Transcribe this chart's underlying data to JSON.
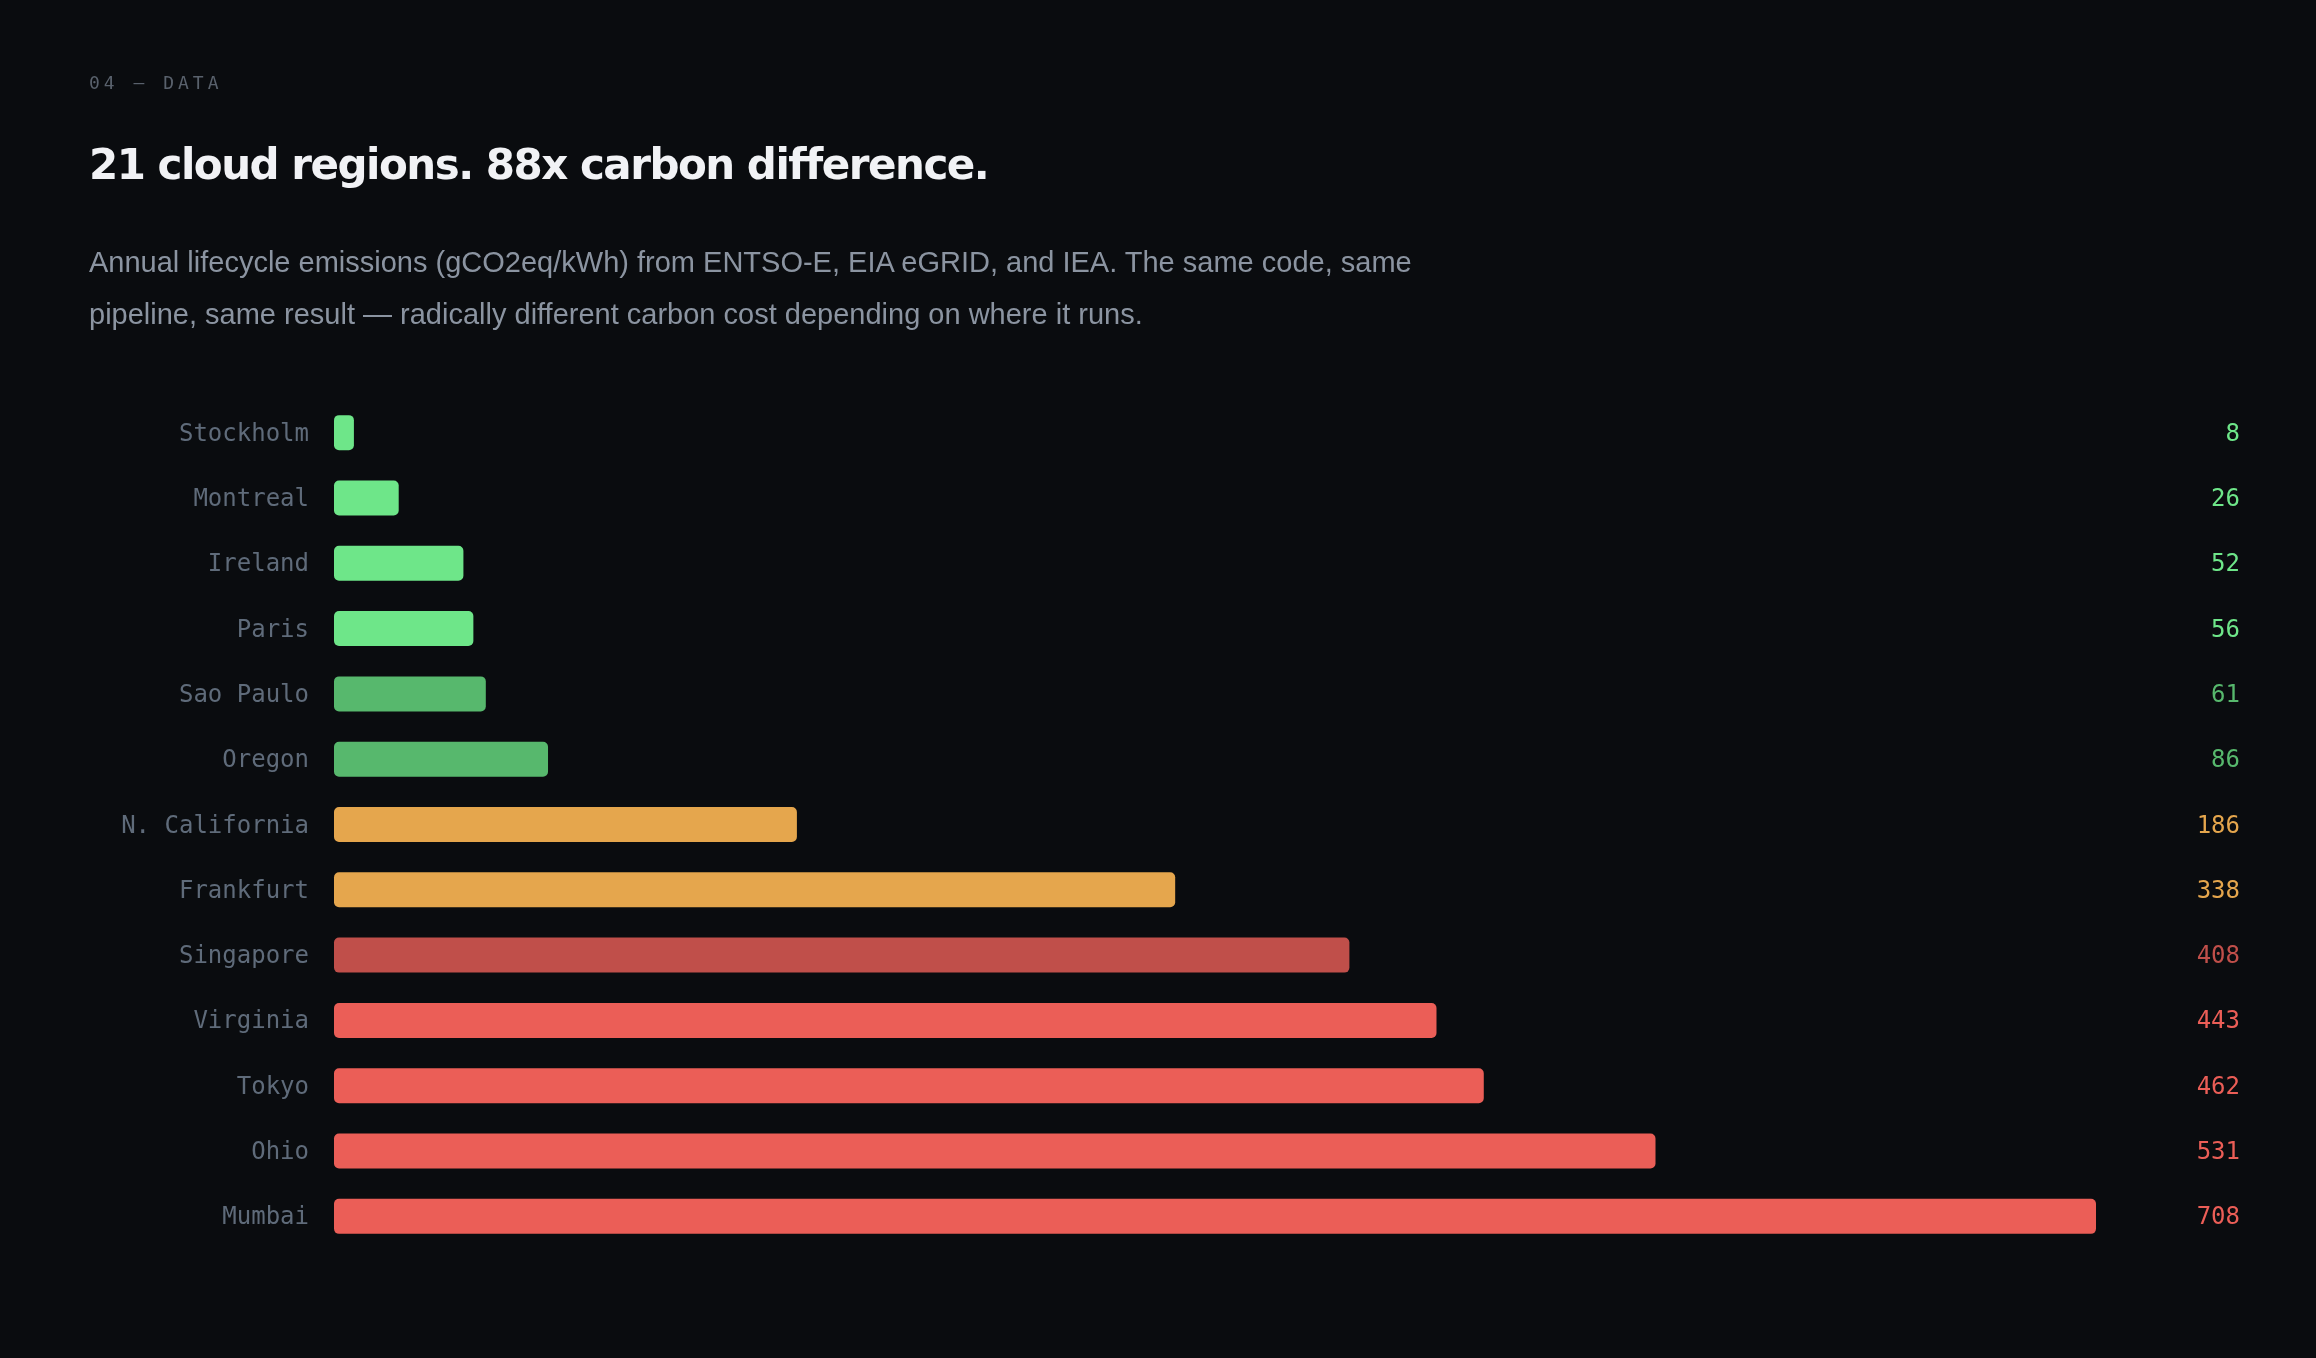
{
  "chart_data": {
    "type": "bar",
    "orientation": "horizontal",
    "title": "21 cloud regions. 88x carbon difference.",
    "subtitle": "Annual lifecycle emissions (gCO2eq/kWh) from ENTSO-E, EIA eGRID, and IEA. The same code, same pipeline, same result — radically different carbon cost depending on where it runs.",
    "annotations": [
      "04 — DATA"
    ],
    "categories": [
      "Stockholm",
      "Montreal",
      "Ireland",
      "Paris",
      "Sao Paulo",
      "Oregon",
      "N. California",
      "Frankfurt",
      "Singapore",
      "Virginia",
      "Tokyo",
      "Ohio",
      "Mumbai"
    ],
    "values": [
      8,
      26,
      52,
      56,
      61,
      86,
      186,
      338,
      408,
      443,
      462,
      531,
      708
    ],
    "colors": [
      "#6ee689",
      "#6ee689",
      "#6ee689",
      "#6ee689",
      "#57b86d",
      "#57b86d",
      "#e5a64d",
      "#e5a64d",
      "#c04f4a",
      "#eb5e57",
      "#eb5e57",
      "#eb5e57",
      "#eb5e57"
    ],
    "data_labels": true
  }
}
